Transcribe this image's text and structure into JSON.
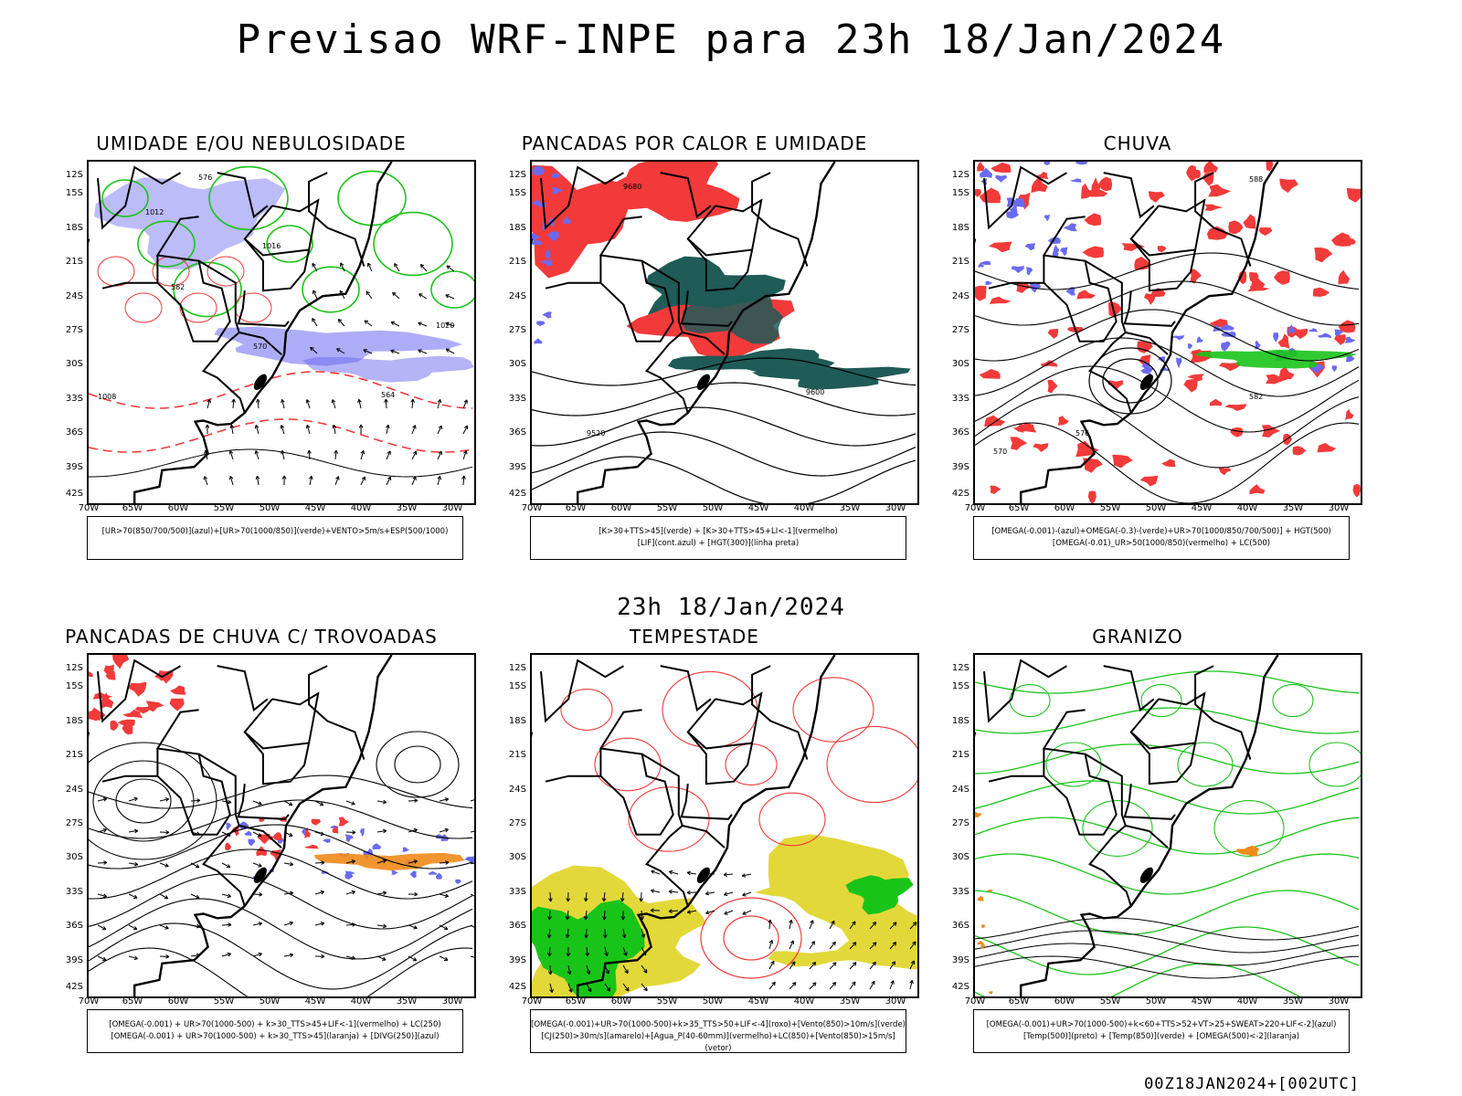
{
  "title": "Previsao WRF-INPE  para 23h 18/Jan/2024",
  "mid_title": "23h 18/Jan/2024",
  "footer": "00Z18JAN2024+[002UTC]",
  "y_ticks": [
    "12S",
    "15S",
    "18S",
    "21S",
    "24S",
    "27S",
    "30S",
    "33S",
    "36S",
    "39S",
    "42S"
  ],
  "x_ticks": [
    "70W",
    "65W",
    "60W",
    "55W",
    "50W",
    "45W",
    "40W",
    "35W",
    "30W"
  ],
  "panels": [
    {
      "title": "UMIDADE E/OU NEBULOSIDADE",
      "legend": [
        "[UR>70(850/700/500)](azul)+[UR>70(1000/850)](verde)+VENTO>5m/s+ESP(500/1000)"
      ],
      "contour_labels": [
        "1012",
        "1016",
        "1020",
        "1008",
        "576",
        "582",
        "570",
        "564"
      ]
    },
    {
      "title": "PANCADAS POR CALOR E UMIDADE",
      "legend": [
        "[K>30+TTS>45](verde) + [K>30+TTS>45+LI<-1](vermelho)",
        "[LIF](cont.azul) + [HGT(300)](linha preta)"
      ],
      "contour_labels": [
        "9680",
        "9600",
        "9520"
      ]
    },
    {
      "title": "CHUVA",
      "legend": [
        "[OMEGA(-0.001)-(azul)+OMEGA(-0.3)-(verde)+UR>70(1000/850/700/500)] + HGT(500)",
        "[OMEGA(-0.01)_UR>50(1000/850)(vermelho) + LC(500)"
      ],
      "contour_labels": [
        "588",
        "582",
        "576",
        "570"
      ]
    },
    {
      "title": "PANCADAS DE CHUVA C/ TROVOADAS",
      "legend": [
        "[OMEGA(-0.001) + UR>70(1000-500) + k>30_TTS>45+LIF<-1](vermelho) + LC(250)",
        "[OMEGA(-0.001) + UR>70(1000-500) + k>30_TTS>45](laranja) + [DIVG(250)](azul)"
      ],
      "contour_labels": []
    },
    {
      "title": "TEMPESTADE",
      "legend": [
        "[OMEGA(-0.001)+UR>70(1000-500)+k>35_TTS>50+LIF<-4](roxo)+[Vento(850)>10m/s](verde)",
        "[CJ(250)>30m/s](amarelo)+[Agua_P(40-60mm)](vermelho)+LC(850)+[Vento(850)>15m/s](vetor)"
      ],
      "contour_labels": []
    },
    {
      "title": "GRANIZO",
      "legend": [
        "[OMEGA(-0.001)+UR>70(1000-500)+k<60+TTS>52+VT>25+SWEAT>220+LIF<-2](azul)",
        "[Temp(500)](preto) + [Temp(850)](verde) + [OMEGA(500)<-2](laranja)"
      ],
      "contour_labels": []
    }
  ],
  "colors": {
    "blue": "#6a6af0",
    "green": "#19c419",
    "red": "#f23a3a",
    "darkgreen": "#1f5b57",
    "yellow": "#e3d83a",
    "orange": "#f08a1a"
  }
}
